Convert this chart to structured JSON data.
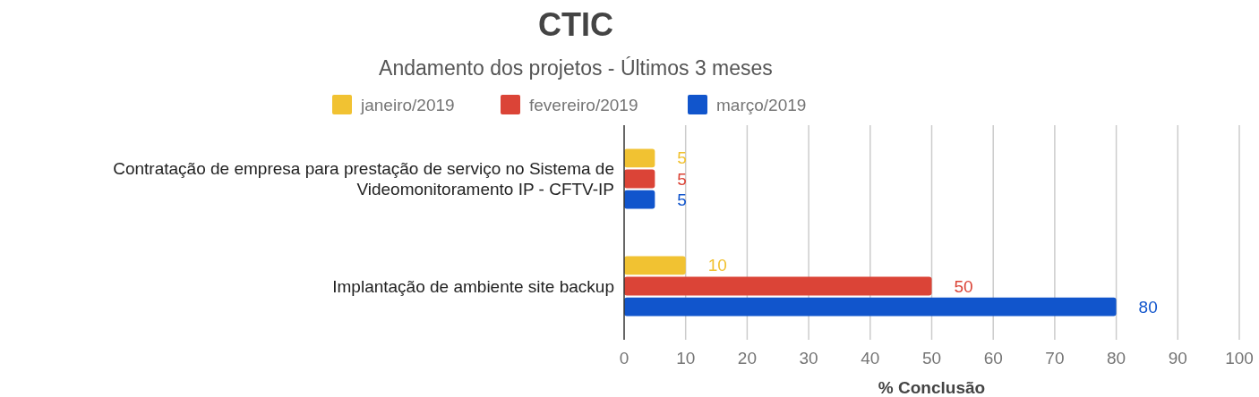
{
  "chart_data": {
    "type": "bar",
    "orientation": "horizontal",
    "title": "CTIC",
    "subtitle": "Andamento dos projetos - Últimos 3 meses",
    "xlabel": "% Conclusão",
    "categories": [
      "Contratação de empresa para prestação de serviço no Sistema de Videomonitoramento IP - CFTV-IP",
      "Implantação de ambiente site backup"
    ],
    "series": [
      {
        "name": "janeiro/2019",
        "color": "#f1c232",
        "values": [
          5,
          10
        ]
      },
      {
        "name": "fevereiro/2019",
        "color": "#db4437",
        "values": [
          5,
          50
        ]
      },
      {
        "name": "março/2019",
        "color": "#1155cc",
        "values": [
          5,
          80
        ]
      }
    ],
    "xlim": [
      0,
      100
    ],
    "xticks": [
      0,
      10,
      20,
      30,
      40,
      50,
      60,
      70,
      80,
      90,
      100
    ],
    "grid": "x",
    "legend": "top",
    "data_labels": true
  }
}
